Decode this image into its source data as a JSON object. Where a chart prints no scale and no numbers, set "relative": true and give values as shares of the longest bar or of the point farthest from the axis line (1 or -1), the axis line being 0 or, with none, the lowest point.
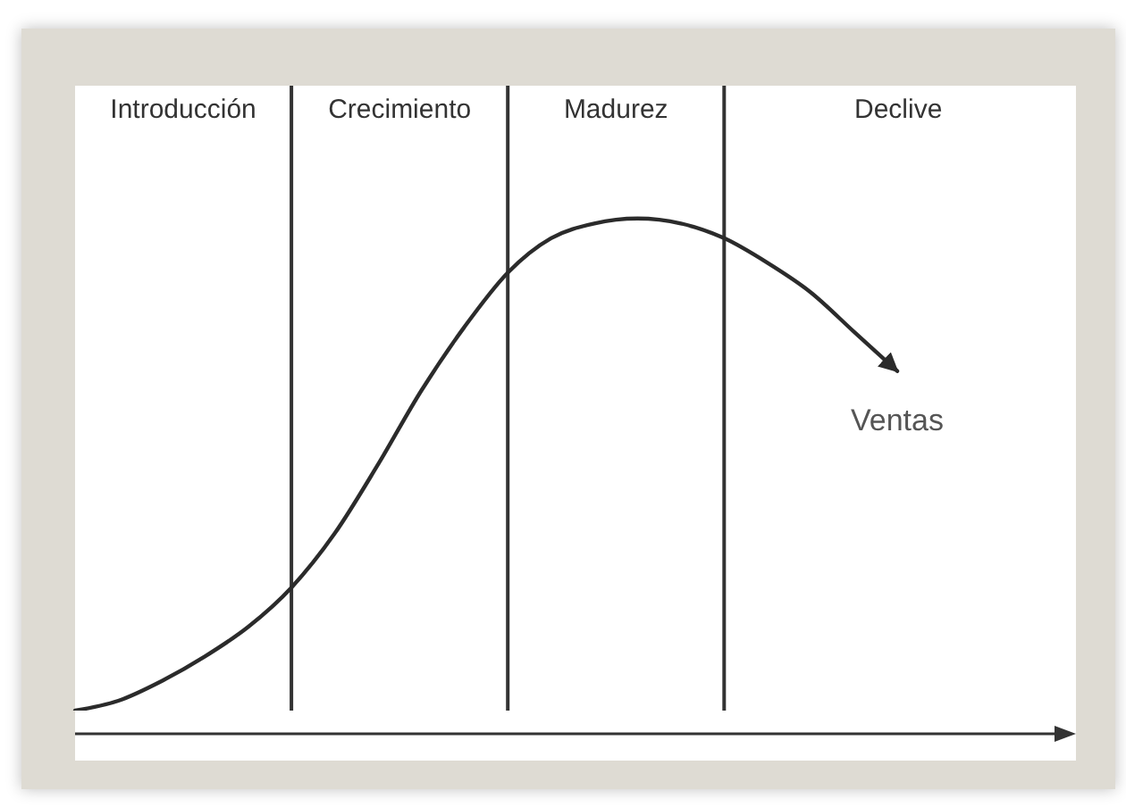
{
  "chart_data": {
    "type": "line",
    "relative": true,
    "categories": [
      null,
      null,
      null,
      null,
      null,
      null,
      null,
      null,
      null,
      null,
      null,
      null,
      null,
      null,
      null,
      null,
      null,
      null,
      null,
      null
    ],
    "series": [
      {
        "name": "Ventas",
        "color": "#2b2b2b",
        "values": [
          0,
          0.02,
          0.06,
          0.11,
          0.17,
          0.25,
          0.36,
          0.5,
          0.65,
          0.78,
          0.89,
          0.96,
          0.99,
          1,
          0.99,
          0.96,
          0.91,
          0.85,
          0.77,
          0.69
        ]
      }
    ],
    "marker": "none",
    "grid": "x",
    "annotations": [
      "Introducción",
      "Crecimiento",
      "Madurez",
      "Declive"
    ]
  }
}
